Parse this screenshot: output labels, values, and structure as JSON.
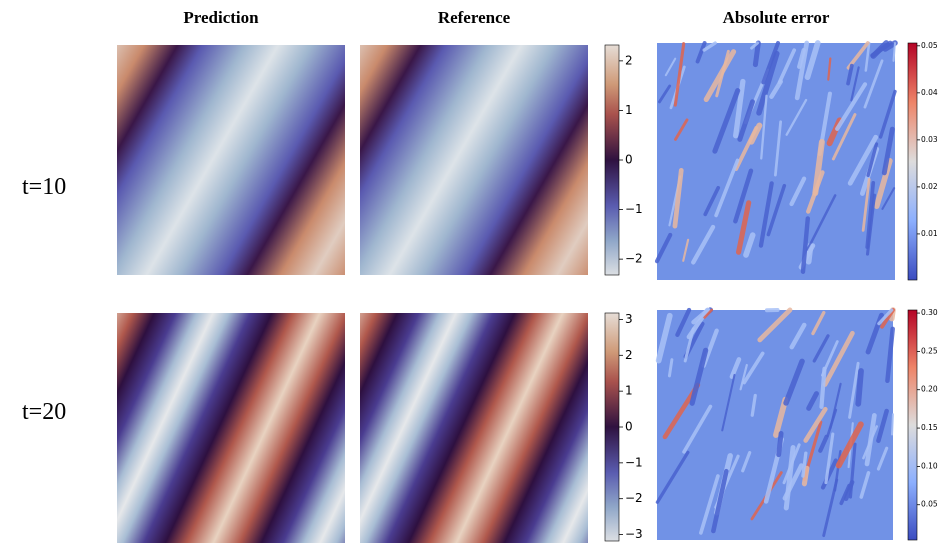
{
  "columns": [
    "Prediction",
    "Reference",
    "Absolute error"
  ],
  "rows": [
    {
      "label": "t=10",
      "field_colorbar": {
        "lim": [
          -2.32,
          2.32
        ],
        "ticks": [
          {
            "value": -2,
            "label": "−2"
          },
          {
            "value": -1,
            "label": "−1"
          },
          0,
          1,
          2
        ]
      },
      "error_colorbar": {
        "lim": [
          0.0002,
          0.0506
        ],
        "ticks": [
          0.01,
          0.02,
          0.03,
          0.04,
          0.05
        ]
      }
    },
    {
      "label": "t=20",
      "field_colorbar": {
        "lim": [
          -3.18,
          3.18
        ],
        "ticks": [
          {
            "value": -3,
            "label": "−3"
          },
          {
            "value": -2,
            "label": "−2"
          },
          {
            "value": -1,
            "label": "−1"
          },
          0,
          1,
          2,
          3
        ]
      },
      "error_colorbar": {
        "lim": [
          0.004,
          0.304
        ],
        "ticks": [
          0.05,
          {
            "value": 0.1,
            "label": "0.10"
          },
          0.15,
          {
            "value": 0.2,
            "label": "0.20"
          },
          0.25,
          {
            "value": 0.3,
            "label": "0.30"
          }
        ]
      }
    }
  ]
}
